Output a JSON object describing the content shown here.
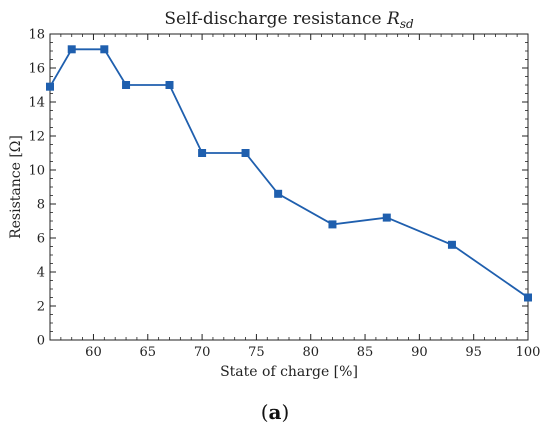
{
  "chart_data": {
    "type": "line",
    "title_main": "Self-discharge resistance ",
    "title_symbol": "R",
    "title_subscript": "sd",
    "xlabel": "State of charge [%]",
    "ylabel": "Resistance [Ω]",
    "xlim": [
      56,
      100
    ],
    "ylim": [
      0,
      18
    ],
    "xticks": [
      60,
      65,
      70,
      75,
      80,
      85,
      90,
      95,
      100
    ],
    "yticks": [
      0,
      2,
      4,
      6,
      8,
      10,
      12,
      14,
      16,
      18
    ],
    "grid": false,
    "series": [
      {
        "color": "#1f5fae",
        "marker": "square",
        "x": [
          56,
          58,
          61,
          63,
          67,
          70,
          74,
          77,
          82,
          87,
          93,
          100
        ],
        "y": [
          14.9,
          17.1,
          17.1,
          15.0,
          15.0,
          11.0,
          11.0,
          8.6,
          6.8,
          7.2,
          5.6,
          2.5
        ]
      }
    ]
  },
  "caption": {
    "open": "(",
    "letter": "a",
    "close": ")"
  }
}
